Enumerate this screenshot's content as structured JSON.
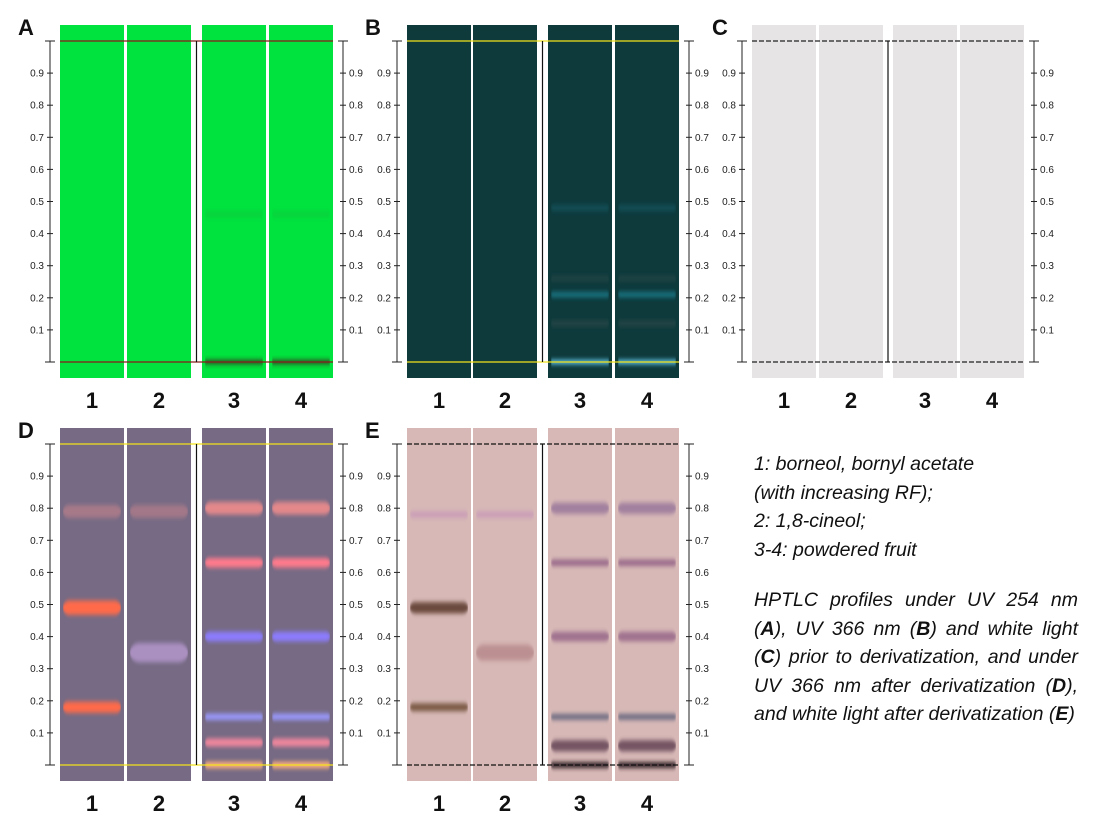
{
  "rf_ticks": [
    "0.1",
    "0.2",
    "0.3",
    "0.4",
    "0.5",
    "0.6",
    "0.7",
    "0.8",
    "0.9"
  ],
  "lane_labels": [
    "1",
    "2",
    "3",
    "4"
  ],
  "panels": [
    {
      "letter": "A",
      "condition": "UV 254 nm, prior to derivatization",
      "plate_color": "#00e23e",
      "boundary_color": "#8b1a1a",
      "bands": [
        {
          "lane": 3,
          "rf": 0.0,
          "color": "#3a2a1a",
          "width": 0.012,
          "opacity": 0.95
        },
        {
          "lane": 4,
          "rf": 0.0,
          "color": "#3a2a1a",
          "width": 0.012,
          "opacity": 0.95
        },
        {
          "lane": 3,
          "rf": 0.46,
          "color": "#14b838",
          "width": 0.02,
          "opacity": 0.35
        },
        {
          "lane": 4,
          "rf": 0.46,
          "color": "#14b838",
          "width": 0.02,
          "opacity": 0.35
        }
      ]
    },
    {
      "letter": "B",
      "condition": "UV 366 nm, prior to derivatization",
      "plate_color": "#0e3a3c",
      "boundary_color": "#f2e21a",
      "bands": [
        {
          "lane": 3,
          "rf": 0.0,
          "color": "#6ad8ff",
          "width": 0.012,
          "opacity": 1
        },
        {
          "lane": 4,
          "rf": 0.0,
          "color": "#6ad8ff",
          "width": 0.012,
          "opacity": 1
        },
        {
          "lane": 3,
          "rf": 0.21,
          "color": "#1a7f8f",
          "width": 0.018,
          "opacity": 0.8
        },
        {
          "lane": 4,
          "rf": 0.21,
          "color": "#1a7f8f",
          "width": 0.018,
          "opacity": 0.8
        },
        {
          "lane": 3,
          "rf": 0.12,
          "color": "#2c4a4a",
          "width": 0.018,
          "opacity": 0.8
        },
        {
          "lane": 4,
          "rf": 0.12,
          "color": "#2c4a4a",
          "width": 0.018,
          "opacity": 0.8
        },
        {
          "lane": 3,
          "rf": 0.26,
          "color": "#2c4a4a",
          "width": 0.016,
          "opacity": 0.7
        },
        {
          "lane": 4,
          "rf": 0.26,
          "color": "#2c4a4a",
          "width": 0.016,
          "opacity": 0.7
        },
        {
          "lane": 3,
          "rf": 0.48,
          "color": "#165a66",
          "width": 0.02,
          "opacity": 0.6
        },
        {
          "lane": 4,
          "rf": 0.48,
          "color": "#165a66",
          "width": 0.02,
          "opacity": 0.6
        }
      ]
    },
    {
      "letter": "C",
      "condition": "white light, prior to derivatization",
      "plate_color": "#e6e4e4",
      "boundary_color": "#222222",
      "bands": []
    },
    {
      "letter": "D",
      "condition": "UV 366 nm, after derivatization",
      "plate_color": "#766a84",
      "boundary_color": "#f2e21a",
      "bands": [
        {
          "lane": 1,
          "rf": 0.79,
          "color": "#c8848c",
          "width": 0.04,
          "opacity": 0.6
        },
        {
          "lane": 2,
          "rf": 0.79,
          "color": "#c8848c",
          "width": 0.04,
          "opacity": 0.55
        },
        {
          "lane": 1,
          "rf": 0.49,
          "color": "#ff6a48",
          "width": 0.045,
          "opacity": 1
        },
        {
          "lane": 1,
          "rf": 0.18,
          "color": "#ff6a48",
          "width": 0.035,
          "opacity": 1
        },
        {
          "lane": 2,
          "rf": 0.35,
          "color": "#b89ad0",
          "width": 0.06,
          "opacity": 0.8
        },
        {
          "lane": 3,
          "rf": 0.8,
          "color": "#f08c8c",
          "width": 0.04,
          "opacity": 0.9
        },
        {
          "lane": 4,
          "rf": 0.8,
          "color": "#f08c8c",
          "width": 0.04,
          "opacity": 0.9
        },
        {
          "lane": 3,
          "rf": 0.63,
          "color": "#ff7a8c",
          "width": 0.03,
          "opacity": 1
        },
        {
          "lane": 4,
          "rf": 0.63,
          "color": "#ff7a8c",
          "width": 0.03,
          "opacity": 1
        },
        {
          "lane": 3,
          "rf": 0.4,
          "color": "#8c7cff",
          "width": 0.03,
          "opacity": 1
        },
        {
          "lane": 4,
          "rf": 0.4,
          "color": "#8c7cff",
          "width": 0.03,
          "opacity": 1
        },
        {
          "lane": 3,
          "rf": 0.15,
          "color": "#9a9aff",
          "width": 0.02,
          "opacity": 1
        },
        {
          "lane": 4,
          "rf": 0.15,
          "color": "#9a9aff",
          "width": 0.02,
          "opacity": 1
        },
        {
          "lane": 3,
          "rf": 0.07,
          "color": "#ff8aa0",
          "width": 0.025,
          "opacity": 0.9
        },
        {
          "lane": 4,
          "rf": 0.07,
          "color": "#ff8aa0",
          "width": 0.025,
          "opacity": 0.9
        },
        {
          "lane": 3,
          "rf": 0.0,
          "color": "#ffb080",
          "width": 0.02,
          "opacity": 1
        },
        {
          "lane": 4,
          "rf": 0.0,
          "color": "#ffb080",
          "width": 0.02,
          "opacity": 1
        }
      ]
    },
    {
      "letter": "E",
      "condition": "white light, after derivatization",
      "plate_color": "#d7b8b6",
      "boundary_color": "#111111",
      "bands": [
        {
          "lane": 1,
          "rf": 0.78,
          "color": "#c898b8",
          "width": 0.02,
          "opacity": 0.8
        },
        {
          "lane": 2,
          "rf": 0.78,
          "color": "#c898b8",
          "width": 0.02,
          "opacity": 0.8
        },
        {
          "lane": 1,
          "rf": 0.49,
          "color": "#6a4a3e",
          "width": 0.035,
          "opacity": 1
        },
        {
          "lane": 1,
          "rf": 0.18,
          "color": "#7a5a44",
          "width": 0.025,
          "opacity": 1
        },
        {
          "lane": 2,
          "rf": 0.35,
          "color": "#b88a8c",
          "width": 0.05,
          "opacity": 0.85
        },
        {
          "lane": 3,
          "rf": 0.8,
          "color": "#9c7a9c",
          "width": 0.035,
          "opacity": 0.9
        },
        {
          "lane": 4,
          "rf": 0.8,
          "color": "#9c7a9c",
          "width": 0.035,
          "opacity": 0.9
        },
        {
          "lane": 3,
          "rf": 0.63,
          "color": "#9a6a8a",
          "width": 0.02,
          "opacity": 1
        },
        {
          "lane": 4,
          "rf": 0.63,
          "color": "#9a6a8a",
          "width": 0.02,
          "opacity": 1
        },
        {
          "lane": 3,
          "rf": 0.4,
          "color": "#9a6a8a",
          "width": 0.03,
          "opacity": 0.9
        },
        {
          "lane": 4,
          "rf": 0.4,
          "color": "#9a6a8a",
          "width": 0.03,
          "opacity": 0.9
        },
        {
          "lane": 3,
          "rf": 0.15,
          "color": "#6a6a80",
          "width": 0.018,
          "opacity": 1
        },
        {
          "lane": 4,
          "rf": 0.15,
          "color": "#6a6a80",
          "width": 0.018,
          "opacity": 1
        },
        {
          "lane": 3,
          "rf": 0.06,
          "color": "#6a4a5a",
          "width": 0.035,
          "opacity": 0.9
        },
        {
          "lane": 4,
          "rf": 0.06,
          "color": "#6a4a5a",
          "width": 0.035,
          "opacity": 0.9
        },
        {
          "lane": 3,
          "rf": 0.0,
          "color": "#2a1a22",
          "width": 0.018,
          "opacity": 1
        },
        {
          "lane": 4,
          "rf": 0.0,
          "color": "#2a1a22",
          "width": 0.018,
          "opacity": 1
        }
      ]
    }
  ],
  "legend": [
    "1: borneol, bornyl acetate",
    "(with increasing RF);",
    "2: 1,8-cineol;",
    "3-4: powdered fruit"
  ],
  "description": {
    "lead": "HPTLC profiles under UV 254 nm (",
    "a": "A",
    "t1": "), UV 366 nm (",
    "b": "B",
    "t2": ") and white light (",
    "c": "C",
    "t3": ") prior to derivatization, and under UV 366 nm after derivatization (",
    "d": "D",
    "t4": "), and white light after derivatization (",
    "e": "E",
    "t5": ")"
  }
}
